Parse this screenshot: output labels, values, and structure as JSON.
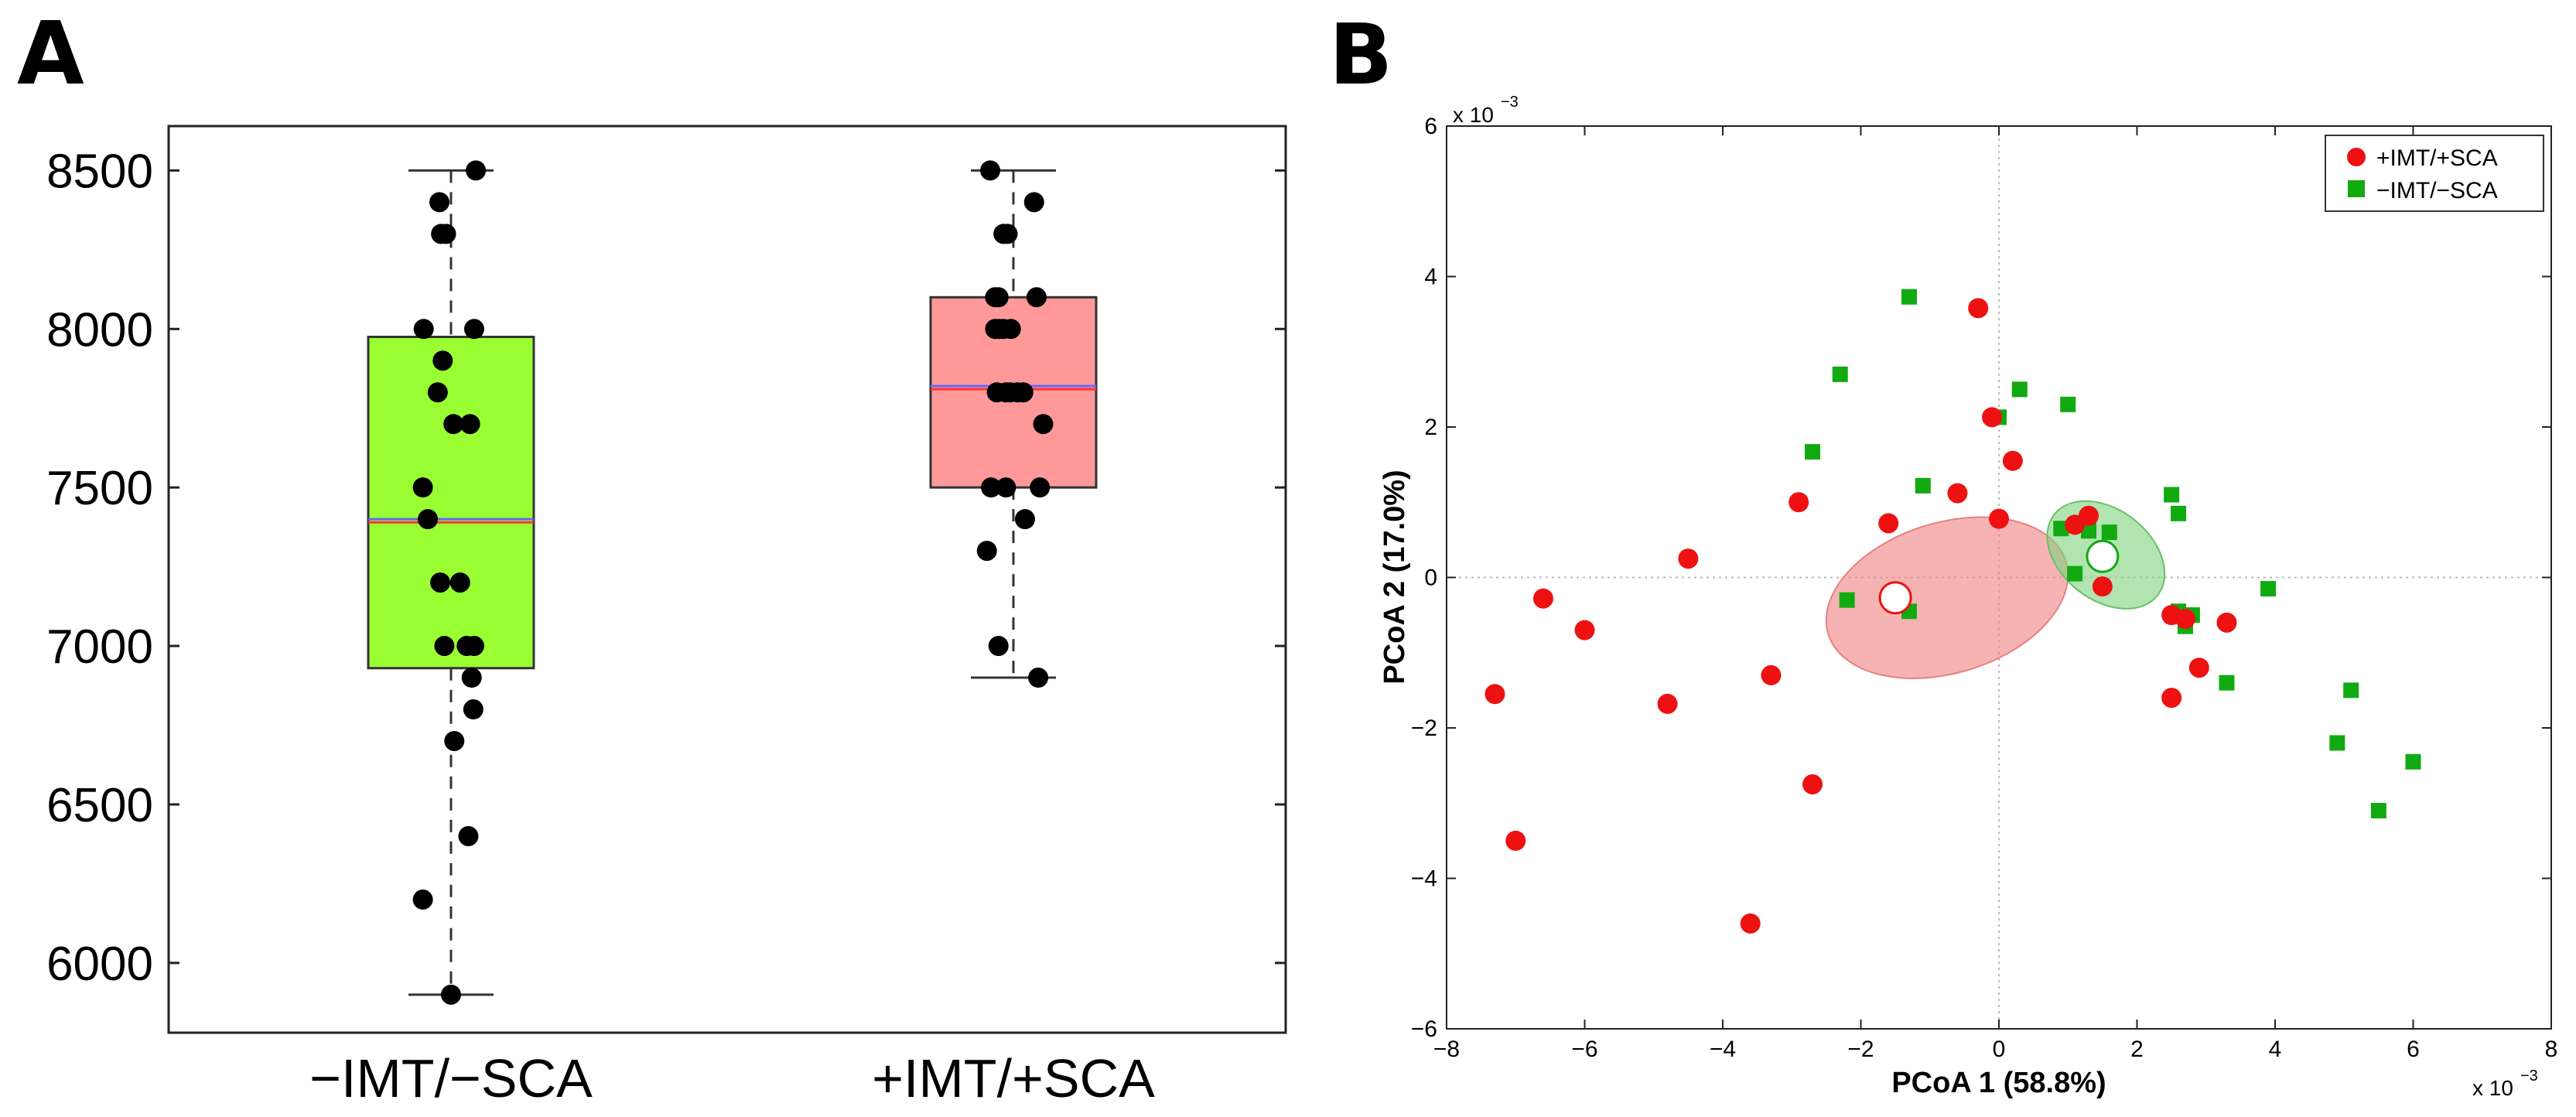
{
  "panel_labels": [
    "A",
    "B"
  ],
  "colors": {
    "box_minus": "#99ff33",
    "box_plus": "#ff9999",
    "median_red": "#ff3333",
    "mean_blue": "#6666ff",
    "dot_black": "#000000",
    "group_plus": "#ee1111",
    "group_minus": "#11aa11",
    "ellipse_plus": "#f08080",
    "ellipse_minus": "#7fd27f"
  },
  "chart_data": [
    {
      "type": "box",
      "panel": "A",
      "title": "",
      "xlabel": "",
      "ylabel": "",
      "ylim": [
        5780,
        8640
      ],
      "yticks": [
        6000,
        6500,
        7000,
        7500,
        8000,
        8500
      ],
      "ytick_labels": [
        "6000",
        "6500",
        "7000",
        "7500",
        "8000",
        "8500"
      ],
      "categories": [
        "−IMT/−SCA",
        "+IMT/+SCA"
      ],
      "boxes": [
        {
          "name": "−IMT/−SCA",
          "whisker_low": 5900,
          "q1": 6930,
          "median": 7390,
          "mean": 7400,
          "q3": 7975,
          "whisker_high": 8500,
          "points": [
            8500,
            8400,
            8300,
            8300,
            8000,
            8000,
            7900,
            7800,
            7700,
            7700,
            7500,
            7400,
            7200,
            7200,
            7000,
            7000,
            7000,
            6900,
            6800,
            6700,
            6400,
            6200,
            5900
          ],
          "jitter": [
            0.3,
            -0.14,
            -0.12,
            -0.06,
            -0.33,
            0.28,
            -0.1,
            -0.16,
            0.03,
            0.23,
            -0.34,
            -0.28,
            -0.13,
            0.11,
            -0.08,
            0.19,
            0.28,
            0.25,
            0.27,
            0.04,
            0.21,
            -0.34,
            0.0
          ]
        },
        {
          "name": "+IMT/+SCA",
          "whisker_low": 6900,
          "q1": 7500,
          "median": 7810,
          "mean": 7820,
          "q3": 8100,
          "whisker_high": 8500,
          "points": [
            8500,
            8400,
            8300,
            8300,
            8100,
            8100,
            8100,
            8000,
            8000,
            8000,
            8000,
            7800,
            7800,
            7800,
            7800,
            7800,
            7700,
            7500,
            7500,
            7500,
            7400,
            7300,
            7000,
            6900
          ],
          "jitter": [
            -0.28,
            0.25,
            -0.12,
            -0.07,
            -0.22,
            -0.18,
            0.28,
            -0.22,
            -0.17,
            -0.12,
            -0.03,
            -0.2,
            -0.09,
            -0.04,
            0.05,
            0.12,
            0.36,
            -0.27,
            -0.09,
            0.32,
            0.14,
            -0.32,
            -0.18,
            0.3
          ]
        }
      ]
    },
    {
      "type": "scatter",
      "panel": "B",
      "title": "",
      "xlabel": "PCoA 1 (58.8%)",
      "ylabel": "PCoA 2 (17.0%)",
      "xlim": [
        -8,
        8
      ],
      "ylim": [
        -6,
        6
      ],
      "xticks": [
        -8,
        -6,
        -4,
        -2,
        0,
        2,
        4,
        6,
        8
      ],
      "xtick_labels": [
        "−8",
        "−6",
        "−4",
        "−2",
        "0",
        "2",
        "4",
        "6",
        "8"
      ],
      "yticks": [
        -6,
        -4,
        -2,
        0,
        2,
        4,
        6
      ],
      "ytick_labels": [
        "−6",
        "−4",
        "−2",
        "0",
        "2",
        "4",
        "6"
      ],
      "x_scale_label": "x 10",
      "y_scale_label": "x 10",
      "scale_exponent": "−3",
      "legend_position": "top-right",
      "series": [
        {
          "name": "+IMT/+SCA",
          "marker": "circle",
          "x": [
            -7.3,
            -7.0,
            -6.6,
            -6.0,
            -4.8,
            -4.5,
            -3.6,
            -3.3,
            -2.9,
            -2.7,
            -1.6,
            -0.6,
            -0.3,
            -0.1,
            0.0,
            0.2,
            1.1,
            1.3,
            1.5,
            2.5,
            2.5,
            2.7,
            2.9,
            3.3
          ],
          "y": [
            -1.55,
            -3.5,
            -0.28,
            -0.7,
            -1.68,
            0.25,
            -4.6,
            -1.3,
            1.0,
            -2.75,
            0.72,
            1.12,
            3.58,
            2.13,
            0.78,
            1.55,
            0.7,
            0.82,
            -0.12,
            -1.6,
            -0.5,
            -0.55,
            -1.2,
            -0.6
          ],
          "order": [
            0,
            1,
            2,
            3,
            4,
            5,
            6,
            7,
            8,
            9,
            10,
            11,
            12,
            13,
            14,
            15,
            16,
            17,
            18,
            19,
            20,
            21,
            22,
            23
          ]
        },
        {
          "name": "−IMT/−SCA",
          "marker": "square",
          "x": [
            -2.7,
            -2.3,
            -2.2,
            -1.3,
            -1.3,
            -1.1,
            0.0,
            0.3,
            0.9,
            1.0,
            1.1,
            1.3,
            2.5,
            2.6,
            2.6,
            2.7,
            2.8,
            3.3,
            3.9,
            4.9,
            5.1,
            5.5,
            6.0,
            1.6
          ],
          "y": [
            1.67,
            2.7,
            -0.3,
            -0.45,
            3.73,
            1.22,
            2.13,
            2.5,
            0.65,
            2.3,
            0.05,
            0.62,
            1.1,
            0.85,
            -0.45,
            -0.65,
            -0.5,
            -1.4,
            -0.15,
            -2.2,
            -1.5,
            -3.1,
            -2.45,
            0.6
          ]
        }
      ],
      "means": [
        {
          "name": "+IMT/+SCA",
          "x": -1.5,
          "y": -0.27
        },
        {
          "name": "−IMT/−SCA",
          "x": 1.5,
          "y": 0.28
        }
      ],
      "ellipses": [
        {
          "name": "+IMT/+SCA",
          "cx": -0.75,
          "cy": -0.27,
          "rx": 3.6,
          "ry": 1.0,
          "angle_deg": 17
        },
        {
          "name": "−IMT/−SCA",
          "cx": 1.55,
          "cy": 0.3,
          "rx": 1.9,
          "ry": 0.6,
          "angle_deg": -38
        }
      ]
    }
  ]
}
